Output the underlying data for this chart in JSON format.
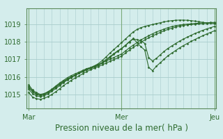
{
  "bg_color": "#d4edec",
  "grid_color": "#a8cccc",
  "line_color": "#2d6a2d",
  "marker_color": "#2d6a2d",
  "xlabel": "Pression niveau de la mer( hPa )",
  "xlabel_fontsize": 8.5,
  "tick_label_fontsize": 7,
  "tick_label_color": "#2d6a2d",
  "ylabel_ticks": [
    1015,
    1016,
    1017,
    1018,
    1019
  ],
  "ylim": [
    1014.2,
    1019.9
  ],
  "x_tick_labels": [
    "Mar",
    "Mer",
    "Jeu"
  ],
  "x_tick_positions": [
    0,
    48,
    96
  ],
  "xlim": [
    -1,
    97
  ],
  "lines": [
    {
      "name": "line_main1",
      "x": [
        0,
        2,
        4,
        6,
        8,
        10,
        12,
        14,
        16,
        18,
        20,
        22,
        24,
        26,
        28,
        30,
        32,
        34,
        36,
        38,
        40,
        42,
        44,
        46,
        48,
        50,
        52,
        54,
        56,
        58,
        60,
        62,
        64,
        66,
        68,
        70,
        72,
        74,
        76,
        78,
        80,
        82,
        84,
        86,
        88,
        90,
        92,
        94,
        96
      ],
      "y": [
        1015.1,
        1014.85,
        1014.75,
        1014.72,
        1014.78,
        1014.87,
        1015.0,
        1015.15,
        1015.32,
        1015.5,
        1015.65,
        1015.8,
        1015.93,
        1016.05,
        1016.18,
        1016.3,
        1016.4,
        1016.5,
        1016.58,
        1016.68,
        1016.78,
        1016.88,
        1016.98,
        1017.08,
        1017.18,
        1017.35,
        1017.52,
        1017.67,
        1017.82,
        1017.97,
        1018.1,
        1018.22,
        1018.33,
        1018.43,
        1018.53,
        1018.62,
        1018.7,
        1018.77,
        1018.83,
        1018.88,
        1018.93,
        1018.96,
        1018.98,
        1019.0,
        1019.02,
        1019.03,
        1019.04,
        1019.05,
        1019.06
      ]
    },
    {
      "name": "line_main2",
      "x": [
        0,
        2,
        4,
        6,
        8,
        10,
        12,
        14,
        16,
        18,
        20,
        22,
        24,
        26,
        28,
        30,
        32,
        34,
        36,
        38,
        40,
        42,
        44,
        46,
        48,
        50,
        52,
        54,
        56,
        58,
        60,
        62,
        64,
        66,
        68,
        70,
        72,
        74,
        76,
        78,
        80,
        82,
        84,
        86,
        88,
        90,
        92,
        94,
        96
      ],
      "y": [
        1015.3,
        1015.05,
        1014.92,
        1014.87,
        1014.93,
        1015.03,
        1015.18,
        1015.33,
        1015.5,
        1015.67,
        1015.82,
        1015.95,
        1016.08,
        1016.2,
        1016.33,
        1016.44,
        1016.53,
        1016.62,
        1016.7,
        1016.8,
        1016.9,
        1017.0,
        1017.1,
        1017.2,
        1017.3,
        1017.47,
        1017.65,
        1017.8,
        1017.95,
        1018.1,
        1018.22,
        1018.34,
        1018.45,
        1018.55,
        1018.64,
        1018.72,
        1018.8,
        1018.86,
        1018.91,
        1018.95,
        1018.98,
        1019.0,
        1019.02,
        1019.04,
        1019.06,
        1019.07,
        1019.08,
        1019.09,
        1019.1
      ]
    },
    {
      "name": "line_wavy1",
      "x": [
        0,
        2,
        4,
        6,
        8,
        10,
        12,
        14,
        16,
        18,
        20,
        22,
        24,
        26,
        28,
        30,
        32,
        34,
        36,
        38,
        40,
        42,
        44,
        46,
        48,
        50,
        52,
        54,
        56,
        58,
        60,
        62,
        64,
        66,
        68,
        70,
        72,
        74,
        76,
        78,
        80,
        82,
        84,
        86,
        88,
        90,
        92,
        94,
        96
      ],
      "y": [
        1015.55,
        1015.25,
        1015.1,
        1015.0,
        1015.05,
        1015.15,
        1015.28,
        1015.43,
        1015.6,
        1015.75,
        1015.88,
        1016.0,
        1016.1,
        1016.2,
        1016.3,
        1016.4,
        1016.48,
        1016.58,
        1016.68,
        1016.82,
        1016.98,
        1017.15,
        1017.32,
        1017.48,
        1017.62,
        1017.8,
        1018.0,
        1018.18,
        1017.95,
        1017.72,
        1017.52,
        1016.55,
        1016.35,
        1016.6,
        1016.8,
        1017.0,
        1017.2,
        1017.35,
        1017.5,
        1017.65,
        1017.78,
        1017.9,
        1018.02,
        1018.13,
        1018.24,
        1018.34,
        1018.44,
        1018.53,
        1018.62
      ]
    },
    {
      "name": "line_wavy2",
      "x": [
        0,
        2,
        4,
        6,
        8,
        10,
        12,
        14,
        16,
        18,
        20,
        22,
        24,
        26,
        28,
        30,
        32,
        34,
        36,
        38,
        40,
        42,
        44,
        46,
        48,
        50,
        52,
        54,
        56,
        58,
        60,
        62,
        64,
        66,
        68,
        70,
        72,
        74,
        76,
        78,
        80,
        82,
        84,
        86,
        88,
        90,
        92,
        94,
        96
      ],
      "y": [
        1015.4,
        1015.15,
        1015.0,
        1014.93,
        1014.98,
        1015.1,
        1015.24,
        1015.4,
        1015.57,
        1015.72,
        1015.86,
        1015.98,
        1016.1,
        1016.2,
        1016.3,
        1016.4,
        1016.48,
        1016.56,
        1016.65,
        1016.78,
        1016.93,
        1017.1,
        1017.28,
        1017.45,
        1017.6,
        1017.78,
        1017.98,
        1018.15,
        1018.12,
        1018.05,
        1017.9,
        1017.1,
        1016.9,
        1017.05,
        1017.25,
        1017.45,
        1017.62,
        1017.76,
        1017.9,
        1018.03,
        1018.15,
        1018.26,
        1018.37,
        1018.47,
        1018.56,
        1018.65,
        1018.73,
        1018.8,
        1018.87
      ]
    },
    {
      "name": "line_peak",
      "x": [
        0,
        2,
        4,
        6,
        8,
        10,
        12,
        14,
        16,
        18,
        20,
        22,
        24,
        26,
        28,
        30,
        32,
        34,
        36,
        38,
        40,
        42,
        44,
        46,
        48,
        50,
        52,
        54,
        56,
        58,
        60,
        62,
        64,
        66,
        68,
        70,
        72,
        74,
        76,
        78,
        80,
        82,
        84,
        86,
        88,
        90,
        92,
        94,
        96
      ],
      "y": [
        1015.45,
        1015.18,
        1015.03,
        1014.97,
        1015.02,
        1015.15,
        1015.3,
        1015.48,
        1015.65,
        1015.8,
        1015.95,
        1016.07,
        1016.17,
        1016.27,
        1016.37,
        1016.47,
        1016.53,
        1016.63,
        1016.75,
        1016.93,
        1017.13,
        1017.35,
        1017.55,
        1017.75,
        1017.95,
        1018.15,
        1018.36,
        1018.55,
        1018.7,
        1018.8,
        1018.87,
        1018.93,
        1018.98,
        1019.03,
        1019.08,
        1019.13,
        1019.17,
        1019.2,
        1019.22,
        1019.23,
        1019.23,
        1019.22,
        1019.2,
        1019.17,
        1019.14,
        1019.1,
        1019.07,
        1019.05,
        1019.03
      ]
    }
  ]
}
